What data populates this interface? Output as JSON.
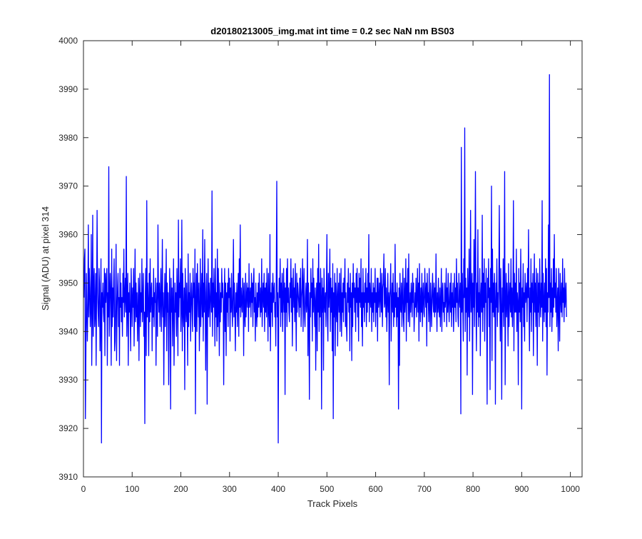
{
  "chart_data": {
    "type": "line",
    "title": "d20180213005_img.mat int time = 0.2 sec  NaN nm BS03",
    "xlabel": "Track Pixels",
    "ylabel": "Signal (ADU) at pixel 314",
    "xlim": [
      0,
      1024
    ],
    "ylim": [
      3910,
      4000
    ],
    "x_ticks": [
      0,
      100,
      200,
      300,
      400,
      500,
      600,
      700,
      800,
      900,
      1000
    ],
    "y_ticks": [
      3910,
      3920,
      3930,
      3940,
      3950,
      3960,
      3970,
      3980,
      3990,
      4000
    ],
    "grid": false,
    "legend": "none",
    "series": [
      {
        "color": "#0000ff",
        "x_start": 1,
        "x_step": 1,
        "values": [
          3947,
          3955,
          3957,
          3922,
          3935,
          3952,
          3944,
          3938,
          3946,
          3962,
          3943,
          3953,
          3949,
          3941,
          3945,
          3960,
          3933,
          3944,
          3964,
          3939,
          3950,
          3953,
          3941,
          3944,
          3952,
          3933,
          3947,
          3965,
          3948,
          3944,
          3941,
          3953,
          3950,
          3936,
          3942,
          3955,
          3917,
          3948,
          3945,
          3950,
          3944,
          3942,
          3953,
          3935,
          3952,
          3946,
          3950,
          3953,
          3933,
          3948,
          3943,
          3974,
          3939,
          3946,
          3952,
          3948,
          3933,
          3957,
          3941,
          3949,
          3943,
          3950,
          3955,
          3936,
          3938,
          3947,
          3958,
          3934,
          3944,
          3949,
          3952,
          3941,
          3947,
          3933,
          3953,
          3945,
          3950,
          3942,
          3947,
          3939,
          3952,
          3946,
          3957,
          3943,
          3947,
          3951,
          3944,
          3972,
          3939,
          3946,
          3952,
          3933,
          3948,
          3944,
          3950,
          3943,
          3936,
          3953,
          3947,
          3941,
          3949,
          3945,
          3953,
          3937,
          3946,
          3957,
          3942,
          3950,
          3943,
          3948,
          3938,
          3944,
          3951,
          3934,
          3947,
          3952,
          3941,
          3948,
          3944,
          3955,
          3942,
          3946,
          3952,
          3939,
          3944,
          3921,
          3948,
          3953,
          3935,
          3967,
          3943,
          3950,
          3946,
          3935,
          3952,
          3942,
          3955,
          3944,
          3948,
          3950,
          3936,
          3947,
          3943,
          3953,
          3941,
          3948,
          3946,
          3951,
          3933,
          3945,
          3950,
          3939,
          3962,
          3948,
          3944,
          3950,
          3941,
          3947,
          3953,
          3940,
          3946,
          3959,
          3943,
          3948,
          3929,
          3944,
          3952,
          3941,
          3947,
          3957,
          3936,
          3950,
          3944,
          3948,
          3929,
          3942,
          3953,
          3946,
          3924,
          3951,
          3944,
          3949,
          3937,
          3946,
          3955,
          3933,
          3941,
          3950,
          3944,
          3948,
          3939,
          3953,
          3946,
          3935,
          3963,
          3943,
          3950,
          3947,
          3955,
          3940,
          3945,
          3963,
          3936,
          3952,
          3944,
          3941,
          3949,
          3928,
          3953,
          3946,
          3942,
          3950,
          3944,
          3933,
          3956,
          3941,
          3948,
          3944,
          3952,
          3938,
          3946,
          3950,
          3945,
          3940,
          3953,
          3947,
          3950,
          3941,
          3957,
          3923,
          3946,
          3952,
          3940,
          3954,
          3948,
          3943,
          3950,
          3936,
          3944,
          3955,
          3941,
          3947,
          3952,
          3943,
          3961,
          3938,
          3950,
          3944,
          3959,
          3946,
          3932,
          3948,
          3952,
          3925,
          3945,
          3955,
          3943,
          3950,
          3946,
          3941,
          3951,
          3948,
          3944,
          3969,
          3939,
          3950,
          3945,
          3953,
          3946,
          3937,
          3955,
          3943,
          3948,
          3938,
          3957,
          3941,
          3953,
          3945,
          3935,
          3950,
          3942,
          3948,
          3944,
          3953,
          3947,
          3950,
          3946,
          3929,
          3946,
          3953,
          3940,
          3950,
          3935,
          3948,
          3944,
          3950,
          3941,
          3953,
          3947,
          3951,
          3938,
          3949,
          3944,
          3952,
          3945,
          3941,
          3948,
          3959,
          3943,
          3950,
          3944,
          3936,
          3948,
          3944,
          3950,
          3941,
          3947,
          3952,
          3939,
          3955,
          3945,
          3962,
          3943,
          3949,
          3946,
          3944,
          3951,
          3948,
          3935,
          3950,
          3944,
          3941,
          3952,
          3943,
          3947,
          3950,
          3945,
          3949,
          3940,
          3954,
          3945,
          3947,
          3949,
          3943,
          3952,
          3946,
          3950,
          3941,
          3950,
          3953,
          3944,
          3947,
          3938,
          3950,
          3944,
          3941,
          3948,
          3943,
          3950,
          3945,
          3952,
          3947,
          3943,
          3949,
          3944,
          3955,
          3941,
          3947,
          3950,
          3945,
          3952,
          3940,
          3949,
          3944,
          3950,
          3943,
          3953,
          3947,
          3938,
          3952,
          3945,
          3941,
          3960,
          3936,
          3948,
          3944,
          3950,
          3941,
          3952,
          3946,
          3948,
          3950,
          3943,
          3946,
          3937,
          3952,
          3971,
          3943,
          3948,
          3917,
          3945,
          3951,
          3947,
          3955,
          3941,
          3950,
          3944,
          3952,
          3940,
          3947,
          3953,
          3944,
          3950,
          3927,
          3949,
          3944,
          3953,
          3941,
          3955,
          3946,
          3949,
          3944,
          3942,
          3950,
          3947,
          3955,
          3944,
          3951,
          3937,
          3948,
          3953,
          3945,
          3949,
          3942,
          3954,
          3946,
          3936,
          3952,
          3944,
          3950,
          3948,
          3946,
          3943,
          3951,
          3945,
          3953,
          3941,
          3947,
          3949,
          3955,
          3940,
          3949,
          3953,
          3943,
          3941,
          3947,
          3950,
          3944,
          3946,
          3959,
          3935,
          3950,
          3944,
          3926,
          3948,
          3943,
          3953,
          3947,
          3950,
          3938,
          3955,
          3944,
          3951,
          3946,
          3941,
          3949,
          3932,
          3946,
          3950,
          3936,
          3953,
          3944,
          3958,
          3940,
          3950,
          3943,
          3953,
          3947,
          3924,
          3951,
          3944,
          3949,
          3932,
          3953,
          3946,
          3944,
          3948,
          3941,
          3950,
          3960,
          3943,
          3938,
          3952,
          3945,
          3948,
          3957,
          3940,
          3951,
          3944,
          3949,
          3936,
          3954,
          3922,
          3948,
          3943,
          3952,
          3935,
          3950,
          3945,
          3942,
          3953,
          3937,
          3947,
          3950,
          3944,
          3952,
          3940,
          3946,
          3953,
          3939,
          3948,
          3944,
          3950,
          3942,
          3951,
          3947,
          3955,
          3941,
          3948,
          3942,
          3938,
          3950,
          3946,
          3953,
          3944,
          3949,
          3936,
          3952,
          3945,
          3948,
          3934,
          3950,
          3941,
          3954,
          3947,
          3950,
          3944,
          3949,
          3940,
          3952,
          3946,
          3953,
          3943,
          3949,
          3938,
          3952,
          3946,
          3951,
          3945,
          3955,
          3941,
          3948,
          3937,
          3953,
          3945,
          3948,
          3942,
          3950,
          3946,
          3953,
          3941,
          3949,
          3944,
          3952,
          3946,
          3960,
          3942,
          3950,
          3947,
          3945,
          3953,
          3940,
          3948,
          3944,
          3950,
          3942,
          3949,
          3946,
          3953,
          3941,
          3948,
          3944,
          3951,
          3938,
          3951,
          3945,
          3947,
          3950,
          3943,
          3953,
          3947,
          3944,
          3952,
          3941,
          3949,
          3950,
          3956,
          3945,
          3946,
          3953,
          3943,
          3949,
          3940,
          3946,
          3952,
          3944,
          3948,
          3929,
          3947,
          3949,
          3954,
          3938,
          3946,
          3950,
          3944,
          3952,
          3941,
          3948,
          3943,
          3958,
          3945,
          3948,
          3941,
          3950,
          3943,
          3947,
          3924,
          3949,
          3933,
          3952,
          3945,
          3944,
          3950,
          3941,
          3947,
          3953,
          3943,
          3940,
          3951,
          3944,
          3947,
          3955,
          3938,
          3950,
          3946,
          3953,
          3942,
          3956,
          3945,
          3941,
          3948,
          3944,
          3950,
          3947,
          3943,
          3952,
          3946,
          3950,
          3940,
          3944,
          3948,
          3945,
          3951,
          3943,
          3947,
          3953,
          3944,
          3950,
          3938,
          3954,
          3946,
          3942,
          3949,
          3944,
          3952,
          3941,
          3947,
          3950,
          3944,
          3943,
          3953,
          3948,
          3945,
          3950,
          3937,
          3952,
          3946,
          3948,
          3942,
          3953,
          3945,
          3940,
          3950,
          3946,
          3941,
          3948,
          3952,
          3946,
          3944,
          3950,
          3943,
          3949,
          3944,
          3956,
          3946,
          3940,
          3948,
          3944,
          3951,
          3945,
          3943,
          3949,
          3941,
          3946,
          3953,
          3940,
          3948,
          3950,
          3944,
          3946,
          3942,
          3950,
          3945,
          3947,
          3953,
          3941,
          3949,
          3944,
          3952,
          3946,
          3942,
          3947,
          3950,
          3944,
          3952,
          3941,
          3948,
          3945,
          3950,
          3940,
          3944,
          3952,
          3945,
          3949,
          3942,
          3955,
          3946,
          3950,
          3943,
          3941,
          3952,
          3947,
          3945,
          3950,
          3923,
          3978,
          3944,
          3952,
          3945,
          3938,
          3955,
          3947,
          3982,
          3940,
          3951,
          3944,
          3949,
          3931,
          3953,
          3946,
          3943,
          3957,
          3938,
          3949,
          3965,
          3944,
          3947,
          3952,
          3927,
          3950,
          3945,
          3959,
          3941,
          3953,
          3973,
          3946,
          3936,
          3950,
          3944,
          3961,
          3941,
          3948,
          3943,
          3953,
          3935,
          3947,
          3950,
          3944,
          3964,
          3940,
          3952,
          3945,
          3955,
          3938,
          3950,
          3946,
          3953,
          3944,
          3925,
          3951,
          3947,
          3955,
          3941,
          3949,
          3928,
          3953,
          3946,
          3970,
          3934,
          3957,
          3944,
          3950,
          3943,
          3952,
          3946,
          3925,
          3950,
          3945,
          3955,
          3941,
          3948,
          3944,
          3950,
          3966,
          3947,
          3938,
          3953,
          3945,
          3926,
          3949,
          3944,
          3955,
          3941,
          3947,
          3973,
          3929,
          3945,
          3952,
          3943,
          3950,
          3946,
          3937,
          3954,
          3941,
          3947,
          3950,
          3944,
          3955,
          3943,
          3949,
          3941,
          3947,
          3967,
          3936,
          3952,
          3944,
          3950,
          3944,
          3957,
          3940,
          3948,
          3946,
          3929,
          3953,
          3944,
          3950,
          3942,
          3957,
          3947,
          3924,
          3949,
          3945,
          3954,
          3941,
          3948,
          3938,
          3952,
          3946,
          3948,
          3950,
          3942,
          3953,
          3947,
          3961,
          3945,
          3936,
          3949,
          3944,
          3955,
          3940,
          3950,
          3946,
          3952,
          3935,
          3947,
          3956,
          3944,
          3950,
          3941,
          3953,
          3946,
          3933,
          3952,
          3944,
          3950,
          3941,
          3955,
          3947,
          3943,
          3950,
          3945,
          3967,
          3938,
          3952,
          3946,
          3942,
          3950,
          3944,
          3955,
          3941,
          3953,
          3931,
          3948,
          3944,
          3962,
          3947,
          3993,
          3941,
          3950,
          3944,
          3953,
          3940,
          3949,
          3943,
          3955,
          3945,
          3960,
          3947,
          3950,
          3944,
          3953,
          3941,
          3946,
          3949,
          3936,
          3953,
          3945,
          3938,
          3952,
          3947,
          3944,
          3950,
          3943,
          3955,
          3946,
          3949,
          3942,
          3953,
          3945,
          3947,
          3950,
          3943
        ]
      }
    ]
  }
}
